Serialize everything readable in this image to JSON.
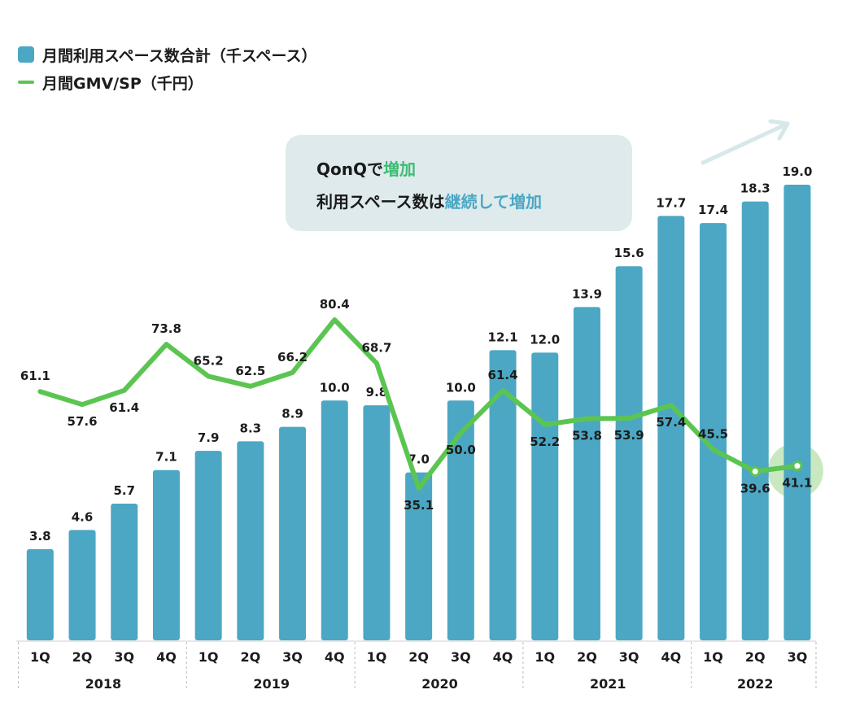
{
  "legend": {
    "bar_label": "月間利用スペース数合計（千スペース）",
    "line_label": "月間GMV/SP（千円）"
  },
  "callout": {
    "line1_prefix": "QonQで",
    "line1_highlight": "増加",
    "line2_prefix": "利用スペース数は",
    "line2_highlight": "継続して増加"
  },
  "colors": {
    "bar": "#4ba7c3",
    "line": "#5cc552",
    "callout_bg": "#deeaec",
    "highlight_green": "#3dbb73",
    "highlight_blue": "#4ba7c3",
    "highlight_circle": "#c9e8c0",
    "arrow": "#d6e8ea"
  },
  "chart_data": {
    "type": "bar+line",
    "title": "",
    "categories": [
      "1Q",
      "2Q",
      "3Q",
      "4Q",
      "1Q",
      "2Q",
      "3Q",
      "4Q",
      "1Q",
      "2Q",
      "3Q",
      "4Q",
      "1Q",
      "2Q",
      "3Q",
      "4Q",
      "1Q",
      "2Q",
      "3Q"
    ],
    "year_groups": [
      {
        "year": "2018",
        "count": 4
      },
      {
        "year": "2019",
        "count": 4
      },
      {
        "year": "2020",
        "count": 4
      },
      {
        "year": "2021",
        "count": 4
      },
      {
        "year": "2022",
        "count": 3
      }
    ],
    "series": [
      {
        "name": "月間利用スペース数合計（千スペース）",
        "type": "bar",
        "values": [
          3.8,
          4.6,
          5.7,
          7.1,
          7.9,
          8.3,
          8.9,
          10.0,
          9.8,
          7.0,
          10.0,
          12.1,
          12.0,
          13.9,
          15.6,
          17.7,
          17.4,
          18.3,
          19.0
        ],
        "labels": [
          "3.8",
          "4.6",
          "5.7",
          "7.1",
          "7.9",
          "8.3",
          "8.9",
          "10.0",
          "9.8",
          "7.0",
          "10.0",
          "12.1",
          "12.0",
          "13.9",
          "15.6",
          "17.7",
          "17.4",
          "18.3",
          "19.0"
        ],
        "ylim": [
          0,
          19.0
        ]
      },
      {
        "name": "月間GMV/SP（千円）",
        "type": "line",
        "values": [
          61.1,
          57.6,
          61.4,
          73.8,
          65.2,
          62.5,
          66.2,
          80.4,
          68.7,
          35.1,
          50.0,
          61.4,
          52.2,
          53.8,
          53.9,
          57.4,
          45.5,
          39.6,
          41.1
        ],
        "labels": [
          "61.1",
          "57.6",
          "61.4",
          "73.8",
          "65.2",
          "62.5",
          "66.2",
          "80.4",
          "68.7",
          "35.1",
          "50.0",
          "61.4",
          "52.2",
          "53.8",
          "53.9",
          "57.4",
          "45.5",
          "39.6",
          "41.1"
        ],
        "label_position": [
          "above",
          "below",
          "below",
          "above",
          "above",
          "above",
          "above",
          "above",
          "above",
          "below",
          "below",
          "above",
          "below",
          "below",
          "below",
          "below",
          "above",
          "below",
          "below"
        ],
        "marked_points": [
          17,
          18
        ],
        "highlighted_point": 18
      }
    ],
    "xlabel": "",
    "ylabel": "",
    "grid": false,
    "legend_position": "top-left"
  }
}
